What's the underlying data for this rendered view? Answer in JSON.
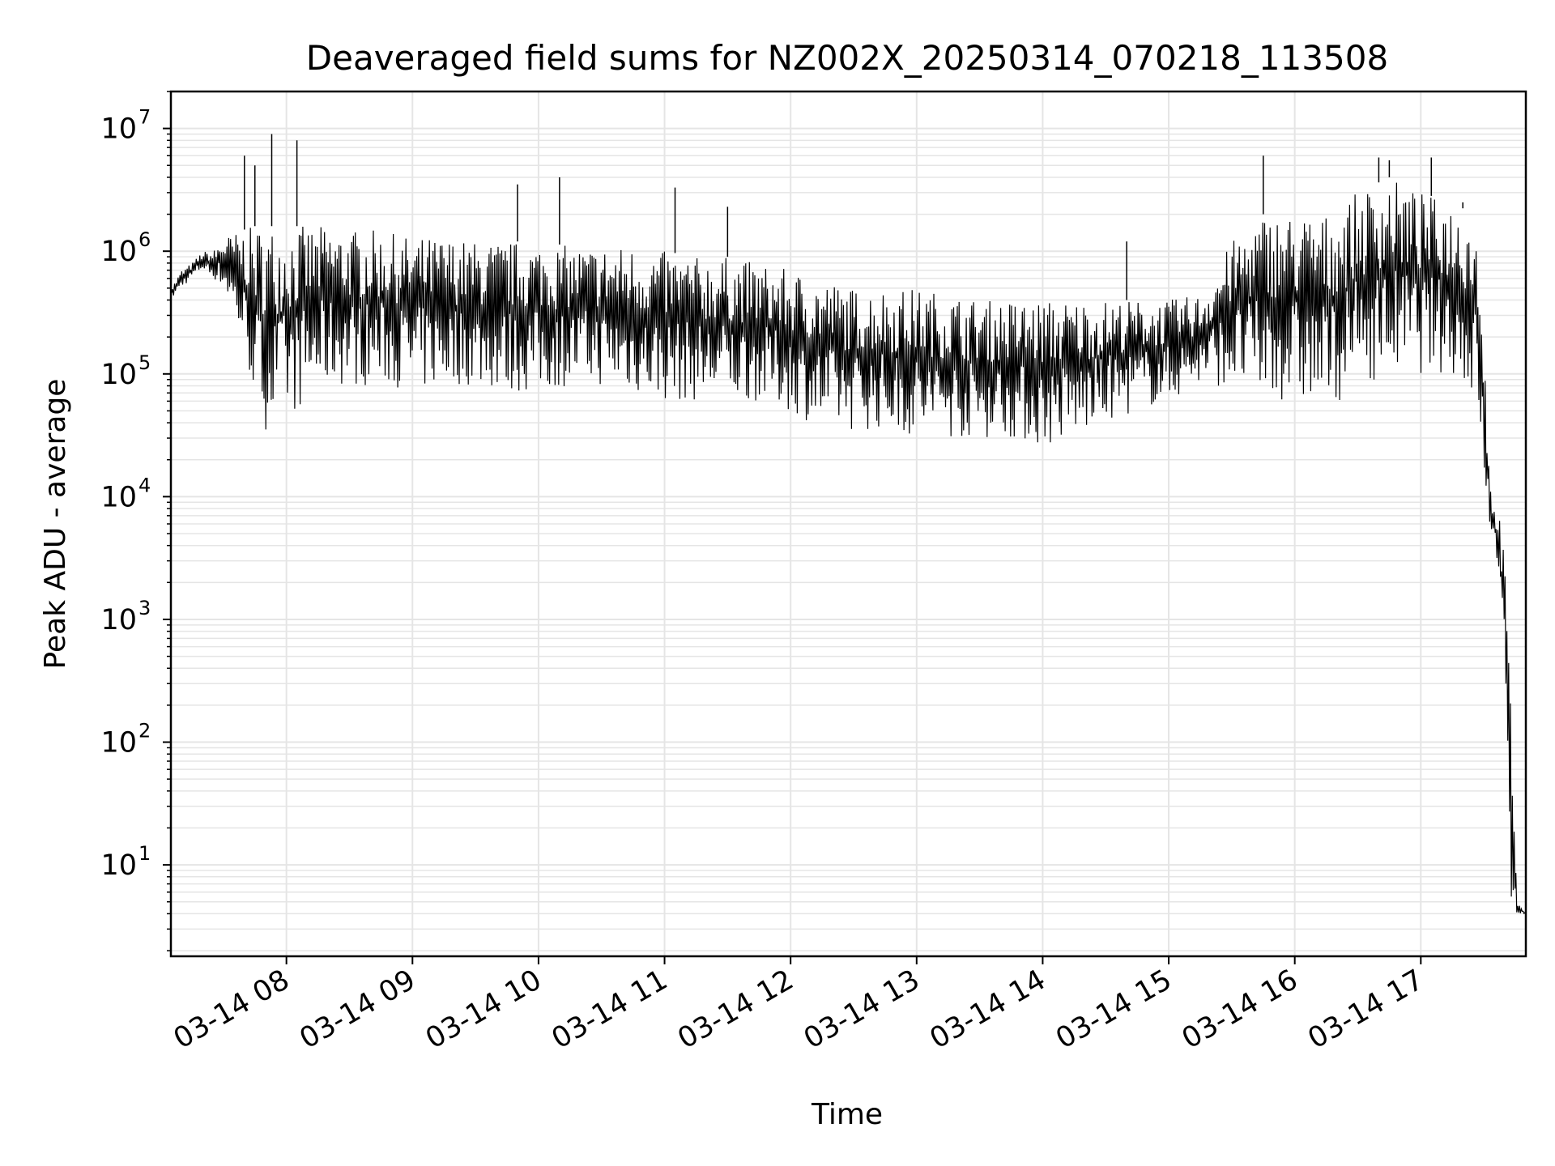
{
  "chart_data": {
    "type": "line",
    "title": "Deaveraged field sums for NZ002X_20250314_070218_113508",
    "xlabel": "Time",
    "ylabel": "Peak ADU - average",
    "yscale": "log",
    "ylim": [
      1.8,
      20000000
    ],
    "xlim": [
      "2025-03-14 07:05",
      "2025-03-14 17:50"
    ],
    "grid": true,
    "line_color": "#000000",
    "grid_color": "#e5e5e5",
    "y_ticks": [
      {
        "base": "10",
        "exp": "1",
        "value": 10
      },
      {
        "base": "10",
        "exp": "2",
        "value": 100
      },
      {
        "base": "10",
        "exp": "3",
        "value": 1000
      },
      {
        "base": "10",
        "exp": "4",
        "value": 10000
      },
      {
        "base": "10",
        "exp": "5",
        "value": 100000
      },
      {
        "base": "10",
        "exp": "6",
        "value": 1000000
      },
      {
        "base": "10",
        "exp": "7",
        "value": 10000000
      }
    ],
    "x_ticks": [
      {
        "label": "03-14 08",
        "time": "2025-03-14 08:00"
      },
      {
        "label": "03-14 09",
        "time": "2025-03-14 09:00"
      },
      {
        "label": "03-14 10",
        "time": "2025-03-14 10:00"
      },
      {
        "label": "03-14 11",
        "time": "2025-03-14 11:00"
      },
      {
        "label": "03-14 12",
        "time": "2025-03-14 12:00"
      },
      {
        "label": "03-14 13",
        "time": "2025-03-14 13:00"
      },
      {
        "label": "03-14 14",
        "time": "2025-03-14 14:00"
      },
      {
        "label": "03-14 15",
        "time": "2025-03-14 15:00"
      },
      {
        "label": "03-14 16",
        "time": "2025-03-14 16:00"
      },
      {
        "label": "03-14 17",
        "time": "2025-03-14 17:00"
      }
    ],
    "series": [
      {
        "x": [
          "2025-03-14 07:05",
          "2025-03-14 07:10",
          "2025-03-14 07:15",
          "2025-03-14 07:20",
          "2025-03-14 07:25",
          "2025-03-14 07:30",
          "2025-03-14 07:35",
          "2025-03-14 07:40",
          "2025-03-14 07:45",
          "2025-03-14 07:50",
          "2025-03-14 07:55",
          "2025-03-14 08:00",
          "2025-03-14 08:05",
          "2025-03-14 08:10",
          "2025-03-14 08:20",
          "2025-03-14 08:30",
          "2025-03-14 08:40",
          "2025-03-14 08:50",
          "2025-03-14 09:00",
          "2025-03-14 09:15",
          "2025-03-14 09:30",
          "2025-03-14 09:45",
          "2025-03-14 10:00",
          "2025-03-14 10:15",
          "2025-03-14 10:30",
          "2025-03-14 10:45",
          "2025-03-14 11:00",
          "2025-03-14 11:15",
          "2025-03-14 11:30",
          "2025-03-14 11:45",
          "2025-03-14 12:00",
          "2025-03-14 12:15",
          "2025-03-14 12:30",
          "2025-03-14 12:45",
          "2025-03-14 13:00",
          "2025-03-14 13:15",
          "2025-03-14 13:30",
          "2025-03-14 13:45",
          "2025-03-14 14:00",
          "2025-03-14 14:15",
          "2025-03-14 14:30",
          "2025-03-14 14:45",
          "2025-03-14 15:00",
          "2025-03-14 15:15",
          "2025-03-14 15:30",
          "2025-03-14 15:45",
          "2025-03-14 16:00",
          "2025-03-14 16:15",
          "2025-03-14 16:30",
          "2025-03-14 16:45",
          "2025-03-14 17:00",
          "2025-03-14 17:15",
          "2025-03-14 17:25",
          "2025-03-14 17:28",
          "2025-03-14 17:31",
          "2025-03-14 17:34",
          "2025-03-14 17:37",
          "2025-03-14 17:40",
          "2025-03-14 17:43",
          "2025-03-14 17:46",
          "2025-03-14 17:50"
        ],
        "ymin": [
          400000,
          500000,
          600000,
          700000,
          600000,
          500000,
          300000,
          150000,
          60000,
          35000,
          40000,
          45000,
          50000,
          60000,
          80000,
          80000,
          80000,
          80000,
          70000,
          80000,
          80000,
          70000,
          70000,
          80000,
          80000,
          70000,
          60000,
          60000,
          60000,
          60000,
          50000,
          35000,
          35000,
          35000,
          30000,
          30000,
          30000,
          30000,
          25000,
          30000,
          40000,
          50000,
          60000,
          80000,
          80000,
          60000,
          60000,
          50000,
          80000,
          100000,
          100000,
          100000,
          60000,
          40000,
          5000,
          5000,
          2500,
          200,
          4,
          4,
          4
        ],
        "ymax": [
          500000,
          700000,
          800000,
          1000000,
          1000000,
          1300000,
          1400000,
          1500000,
          1600000,
          1600000,
          1600000,
          1600000,
          1600000,
          1600000,
          1600000,
          1500000,
          1500000,
          1400000,
          1300000,
          1300000,
          1200000,
          1200000,
          1200000,
          1100000,
          1100000,
          1100000,
          1000000,
          900000,
          900000,
          800000,
          700000,
          600000,
          500000,
          500000,
          500000,
          450000,
          400000,
          400000,
          400000,
          400000,
          400000,
          400000,
          400000,
          450000,
          1200000,
          2000000,
          2000000,
          2000000,
          3000000,
          4000000,
          3000000,
          2500000,
          2000000,
          1000000,
          100000,
          8000,
          8000,
          3000,
          200,
          5,
          4
        ],
        "spikes": [
          {
            "x": "2025-03-14 07:40",
            "y": 6000000
          },
          {
            "x": "2025-03-14 07:45",
            "y": 5000000
          },
          {
            "x": "2025-03-14 07:53",
            "y": 9000000
          },
          {
            "x": "2025-03-14 08:05",
            "y": 8000000
          },
          {
            "x": "2025-03-14 09:50",
            "y": 3500000
          },
          {
            "x": "2025-03-14 10:10",
            "y": 4000000
          },
          {
            "x": "2025-03-14 11:05",
            "y": 3300000
          },
          {
            "x": "2025-03-14 11:30",
            "y": 2300000
          },
          {
            "x": "2025-03-14 14:40",
            "y": 1200000
          },
          {
            "x": "2025-03-14 15:45",
            "y": 6000000
          },
          {
            "x": "2025-03-14 16:40",
            "y": 5800000
          },
          {
            "x": "2025-03-14 16:45",
            "y": 5500000
          },
          {
            "x": "2025-03-14 17:05",
            "y": 5800000
          },
          {
            "x": "2025-03-14 17:20",
            "y": 2500000
          }
        ]
      }
    ]
  }
}
